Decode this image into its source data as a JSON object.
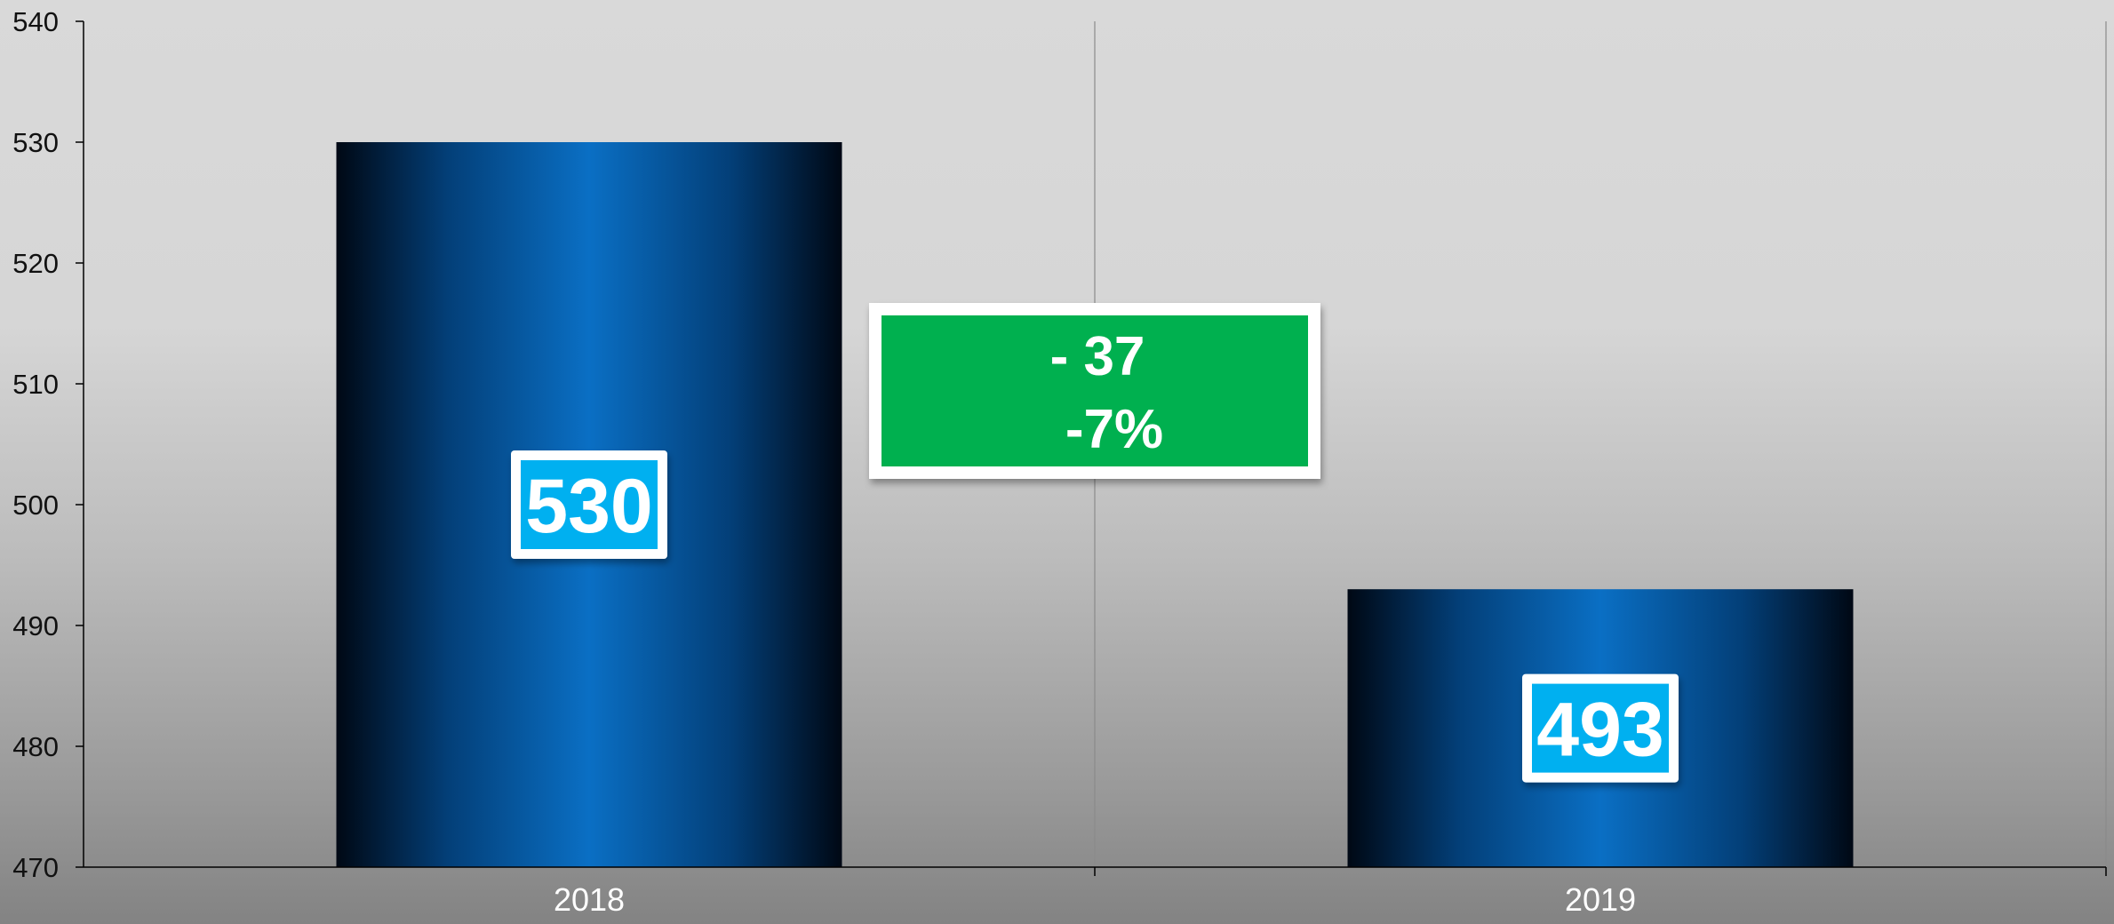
{
  "chart_data": {
    "type": "bar",
    "categories": [
      "2018",
      "2019"
    ],
    "values": [
      530,
      493
    ],
    "ylim": [
      470,
      540
    ],
    "yticks": [
      470,
      480,
      490,
      500,
      510,
      520,
      530,
      540
    ],
    "ytick_labels": [
      "470",
      "480",
      "490",
      "500",
      "510",
      "520",
      "530",
      "540"
    ],
    "data_labels": [
      "530",
      "493"
    ],
    "grid": "vertical",
    "title": "",
    "xlabel": "",
    "ylabel": "",
    "annotation": {
      "lines": [
        "- 37",
        "-7%"
      ],
      "color": "#00b050"
    },
    "colors": {
      "bar_center": "#0a6fc4",
      "bar_edge": "#000814",
      "label_box": "#00b0f0",
      "label_border": "#ffffff"
    }
  }
}
